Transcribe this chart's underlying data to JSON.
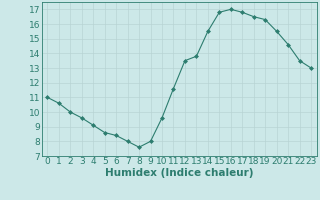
{
  "x": [
    0,
    1,
    2,
    3,
    4,
    5,
    6,
    7,
    8,
    9,
    10,
    11,
    12,
    13,
    14,
    15,
    16,
    17,
    18,
    19,
    20,
    21,
    22,
    23
  ],
  "y": [
    11,
    10.6,
    10,
    9.6,
    9.1,
    8.6,
    8.4,
    8.0,
    7.6,
    8.0,
    9.6,
    11.6,
    13.5,
    13.8,
    15.5,
    16.8,
    17.0,
    16.8,
    16.5,
    16.3,
    15.5,
    14.6,
    13.5,
    13.0
  ],
  "xlabel": "Humidex (Indice chaleur)",
  "xlim": [
    -0.5,
    23.5
  ],
  "ylim": [
    7,
    17.5
  ],
  "yticks": [
    7,
    8,
    9,
    10,
    11,
    12,
    13,
    14,
    15,
    16,
    17
  ],
  "xticks": [
    0,
    1,
    2,
    3,
    4,
    5,
    6,
    7,
    8,
    9,
    10,
    11,
    12,
    13,
    14,
    15,
    16,
    17,
    18,
    19,
    20,
    21,
    22,
    23
  ],
  "line_color": "#2d7d6f",
  "marker_color": "#2d7d6f",
  "bg_color": "#cce8e8",
  "grid_color": "#b8d4d4",
  "tick_label_color": "#2d7d6f",
  "xlabel_color": "#2d7d6f",
  "font_size": 6.5,
  "xlabel_font_size": 7.5
}
